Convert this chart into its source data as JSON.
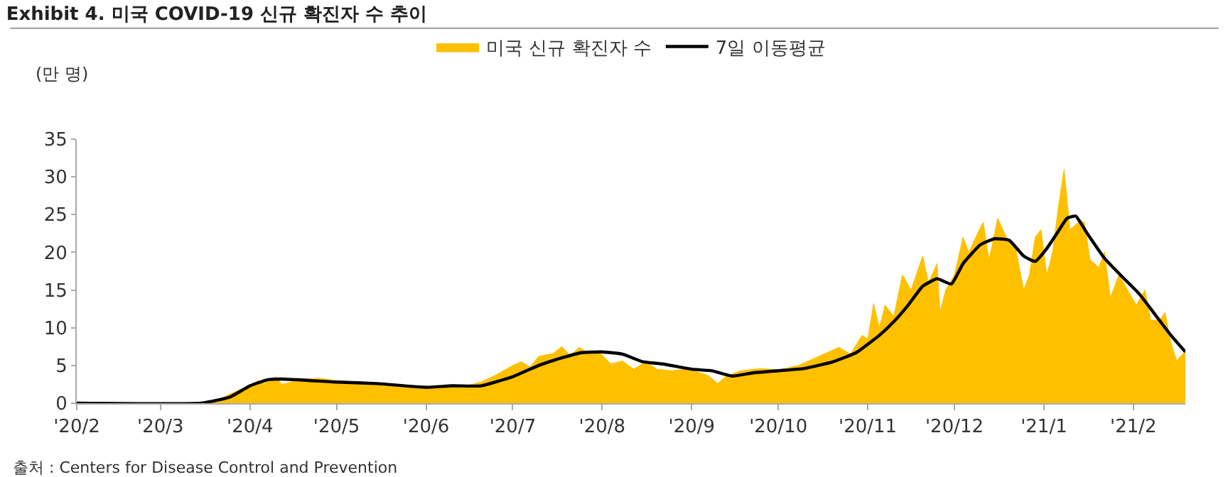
{
  "chart_data": {
    "type": "area",
    "title": "Exhibit 4. 미국 COVID-19 신규 확진자 수 추이",
    "ylabel": "(만 명)",
    "annotations": [
      "출처 : Centers for Disease Control and Prevention"
    ],
    "series": [
      {
        "name": "미국 신규 확진자 수",
        "color": "#ffc000",
        "x": [
          "2020-02-01",
          "2020-03-15",
          "2020-03-20",
          "2020-03-25",
          "2020-03-31",
          "2020-04-04",
          "2020-04-06",
          "2020-04-10",
          "2020-04-12",
          "2020-04-20",
          "2020-04-25",
          "2020-05-01",
          "2020-05-10",
          "2020-05-17",
          "2020-05-25",
          "2020-06-01",
          "2020-06-05",
          "2020-06-10",
          "2020-06-15",
          "2020-06-20",
          "2020-06-25",
          "2020-07-01",
          "2020-07-04",
          "2020-07-07",
          "2020-07-10",
          "2020-07-15",
          "2020-07-18",
          "2020-07-21",
          "2020-07-24",
          "2020-07-28",
          "2020-07-31",
          "2020-08-04",
          "2020-08-08",
          "2020-08-12",
          "2020-08-16",
          "2020-08-20",
          "2020-08-25",
          "2020-08-30",
          "2020-09-02",
          "2020-09-07",
          "2020-09-10",
          "2020-09-13",
          "2020-09-18",
          "2020-09-25",
          "2020-10-01",
          "2020-10-08",
          "2020-10-15",
          "2020-10-22",
          "2020-10-26",
          "2020-10-30",
          "2020-11-01",
          "2020-11-03",
          "2020-11-05",
          "2020-11-07",
          "2020-11-10",
          "2020-11-13",
          "2020-11-16",
          "2020-11-20",
          "2020-11-22",
          "2020-11-25",
          "2020-11-26",
          "2020-11-28",
          "2020-12-01",
          "2020-12-04",
          "2020-12-06",
          "2020-12-09",
          "2020-12-11",
          "2020-12-13",
          "2020-12-16",
          "2020-12-19",
          "2020-12-22",
          "2020-12-25",
          "2020-12-27",
          "2020-12-29",
          "2020-12-31",
          "2021-01-02",
          "2021-01-04",
          "2021-01-06",
          "2021-01-08",
          "2021-01-10",
          "2021-01-13",
          "2021-01-15",
          "2021-01-17",
          "2021-01-20",
          "2021-01-22",
          "2021-01-24",
          "2021-01-27",
          "2021-01-30",
          "2021-02-02",
          "2021-02-05",
          "2021-02-07",
          "2021-02-10",
          "2021-02-12",
          "2021-02-14",
          "2021-02-16",
          "2021-02-18",
          "2021-02-19"
        ],
        "values": [
          0,
          0,
          0.3,
          1.2,
          2.2,
          3.0,
          2.6,
          3.5,
          2.5,
          3.2,
          3.3,
          3.0,
          2.7,
          2.5,
          2.0,
          2.3,
          2.0,
          2.2,
          2.3,
          2.8,
          3.7,
          5.0,
          5.5,
          4.8,
          6.2,
          6.6,
          7.5,
          6.3,
          7.4,
          6.5,
          6.8,
          5.2,
          5.6,
          4.5,
          5.5,
          4.5,
          4.3,
          4.5,
          4.3,
          3.6,
          2.6,
          3.6,
          4.3,
          4.6,
          4.4,
          5.0,
          6.2,
          7.4,
          6.5,
          9.0,
          8.5,
          13.2,
          10,
          13,
          11.5,
          17,
          15,
          19.5,
          16,
          18.5,
          12,
          15,
          17,
          22,
          20,
          22.5,
          24,
          19,
          24.5,
          22,
          21,
          15,
          17,
          22,
          23,
          17,
          20,
          26,
          31,
          23,
          24,
          24,
          19,
          18,
          20,
          14,
          17,
          15,
          13,
          15,
          11,
          11,
          12,
          8,
          5.6,
          6.5,
          6.8
        ]
      },
      {
        "name": "7일 이동평균",
        "type": "line",
        "color": "#000000",
        "x": [
          "2020-02-01",
          "2020-03-15",
          "2020-03-25",
          "2020-04-01",
          "2020-04-07",
          "2020-04-12",
          "2020-05-01",
          "2020-05-15",
          "2020-06-01",
          "2020-06-10",
          "2020-06-20",
          "2020-07-01",
          "2020-07-10",
          "2020-07-18",
          "2020-07-25",
          "2020-08-01",
          "2020-08-08",
          "2020-08-15",
          "2020-08-22",
          "2020-09-01",
          "2020-09-08",
          "2020-09-15",
          "2020-09-22",
          "2020-10-01",
          "2020-10-10",
          "2020-10-20",
          "2020-10-28",
          "2020-11-05",
          "2020-11-10",
          "2020-11-15",
          "2020-11-20",
          "2020-11-25",
          "2020-11-30",
          "2020-12-04",
          "2020-12-10",
          "2020-12-15",
          "2020-12-20",
          "2020-12-25",
          "2020-12-29",
          "2021-01-02",
          "2021-01-06",
          "2021-01-09",
          "2021-01-12",
          "2021-01-16",
          "2021-01-22",
          "2021-01-28",
          "2021-02-03",
          "2021-02-08",
          "2021-02-14",
          "2021-02-19"
        ],
        "values": [
          0,
          0,
          0.8,
          2.3,
          3.1,
          3.2,
          2.8,
          2.6,
          2.1,
          2.3,
          2.3,
          3.5,
          5.0,
          6.0,
          6.7,
          6.8,
          6.5,
          5.5,
          5.2,
          4.5,
          4.3,
          3.6,
          4.0,
          4.3,
          4.6,
          5.5,
          6.7,
          9.0,
          10.8,
          13.0,
          15.5,
          16.5,
          15.8,
          18.5,
          21.0,
          21.8,
          21.6,
          19.5,
          18.8,
          20.5,
          22.8,
          24.5,
          24.8,
          22.5,
          19.2,
          16.8,
          14.5,
          12.0,
          9.0,
          6.8
        ]
      }
    ],
    "xlim": [
      "2020-02-01",
      "2021-02-19"
    ],
    "xticks": [
      {
        "value": "2020-02-01",
        "label": "'20/2"
      },
      {
        "value": "2020-03-01",
        "label": "'20/3"
      },
      {
        "value": "2020-04-01",
        "label": "'20/4"
      },
      {
        "value": "2020-05-01",
        "label": "'20/5"
      },
      {
        "value": "2020-06-01",
        "label": "'20/6"
      },
      {
        "value": "2020-07-01",
        "label": "'20/7"
      },
      {
        "value": "2020-08-01",
        "label": "'20/8"
      },
      {
        "value": "2020-09-01",
        "label": "'20/9"
      },
      {
        "value": "2020-10-01",
        "label": "'20/10"
      },
      {
        "value": "2020-11-01",
        "label": "'20/11"
      },
      {
        "value": "2020-12-01",
        "label": "'20/12"
      },
      {
        "value": "2021-01-01",
        "label": "'21/1"
      },
      {
        "value": "2021-02-01",
        "label": "'21/2"
      }
    ],
    "ylim": [
      0,
      35
    ],
    "yticks": [
      0,
      5,
      10,
      15,
      20,
      25,
      30,
      35
    ],
    "grid": false,
    "legend": "top",
    "line_style": "solid",
    "marker": "none"
  }
}
